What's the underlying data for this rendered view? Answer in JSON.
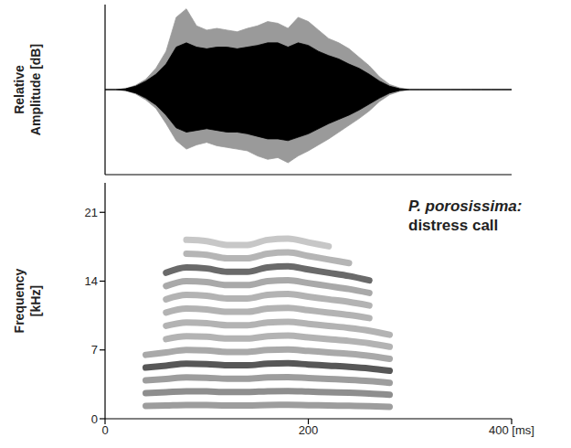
{
  "chart_data": [
    {
      "type": "area",
      "ylabel": "Relative Amplitude [dB]",
      "x": [
        0,
        10,
        20,
        30,
        40,
        50,
        60,
        70,
        80,
        90,
        100,
        110,
        120,
        130,
        140,
        150,
        160,
        170,
        180,
        190,
        200,
        210,
        220,
        230,
        240,
        250,
        260,
        270,
        280,
        290,
        300,
        310,
        320,
        330,
        340,
        350,
        360,
        370,
        380,
        390,
        400
      ],
      "series": [
        {
          "color": "#9a9a9a",
          "values": [
            0,
            0,
            0.01,
            0.05,
            0.12,
            0.25,
            0.45,
            0.85,
            0.95,
            0.75,
            0.7,
            0.72,
            0.7,
            0.68,
            0.72,
            0.75,
            0.8,
            0.78,
            0.72,
            0.85,
            0.8,
            0.7,
            0.6,
            0.55,
            0.48,
            0.38,
            0.28,
            0.15,
            0.06,
            0.02,
            0,
            0,
            0,
            0,
            0,
            0,
            0,
            0,
            0,
            0,
            0
          ]
        },
        {
          "color": "#9a9a9a",
          "values": [
            0,
            0,
            -0.01,
            -0.05,
            -0.12,
            -0.22,
            -0.4,
            -0.6,
            -0.7,
            -0.65,
            -0.62,
            -0.66,
            -0.68,
            -0.7,
            -0.72,
            -0.78,
            -0.82,
            -0.8,
            -0.86,
            -0.78,
            -0.72,
            -0.65,
            -0.58,
            -0.5,
            -0.42,
            -0.34,
            -0.25,
            -0.14,
            -0.06,
            -0.02,
            0,
            0,
            0,
            0,
            0,
            0,
            0,
            0,
            0,
            0,
            0
          ]
        },
        {
          "color": "#000000",
          "values": [
            0,
            0,
            0.01,
            0.04,
            0.1,
            0.18,
            0.3,
            0.5,
            0.55,
            0.5,
            0.48,
            0.5,
            0.5,
            0.48,
            0.5,
            0.52,
            0.55,
            0.55,
            0.5,
            0.55,
            0.52,
            0.45,
            0.4,
            0.36,
            0.3,
            0.25,
            0.18,
            0.1,
            0.04,
            0.01,
            0,
            0,
            0,
            0,
            0,
            0,
            0,
            0,
            0,
            0,
            0
          ]
        },
        {
          "color": "#000000",
          "values": [
            0,
            0,
            -0.01,
            -0.04,
            -0.1,
            -0.18,
            -0.3,
            -0.45,
            -0.5,
            -0.48,
            -0.46,
            -0.48,
            -0.5,
            -0.5,
            -0.52,
            -0.55,
            -0.58,
            -0.58,
            -0.6,
            -0.56,
            -0.52,
            -0.46,
            -0.4,
            -0.35,
            -0.3,
            -0.24,
            -0.17,
            -0.1,
            -0.04,
            -0.01,
            0,
            0,
            0,
            0,
            0,
            0,
            0,
            0,
            0,
            0,
            0
          ]
        }
      ],
      "xlim": [
        0,
        400
      ],
      "ylim": [
        -1,
        1
      ],
      "tick_labels": false
    },
    {
      "type": "line",
      "title": "P. porosissima: distress call",
      "ylabel": "Frequency [kHz]",
      "x": [
        40,
        60,
        80,
        100,
        120,
        140,
        160,
        180,
        200,
        220,
        240,
        260,
        280
      ],
      "series": [
        {
          "color": "#8c8c8c",
          "values": [
            1.3,
            1.35,
            1.4,
            1.39,
            1.36,
            1.36,
            1.4,
            1.41,
            1.38,
            1.35,
            1.32,
            1.28,
            1.22
          ]
        },
        {
          "color": "#7a7a7a",
          "values": [
            2.6,
            2.7,
            2.8,
            2.78,
            2.72,
            2.72,
            2.8,
            2.82,
            2.76,
            2.7,
            2.64,
            2.56,
            2.44
          ]
        },
        {
          "color": "#8c8c8c",
          "values": [
            3.9,
            4.05,
            4.2,
            4.17,
            4.08,
            4.08,
            4.2,
            4.23,
            4.14,
            4.05,
            3.96,
            3.84,
            3.66
          ]
        },
        {
          "color": "#3a3a3a",
          "values": [
            5.2,
            5.4,
            5.6,
            5.56,
            5.44,
            5.44,
            5.6,
            5.64,
            5.52,
            5.4,
            5.28,
            5.12,
            4.88
          ]
        },
        {
          "color": "#9a9a9a",
          "values": [
            6.5,
            6.75,
            7.0,
            6.95,
            6.8,
            6.8,
            7.0,
            7.05,
            6.9,
            6.75,
            6.6,
            6.4,
            6.1
          ]
        },
        {
          "color": "#a6a6a6",
          "values": [
            null,
            8.1,
            8.4,
            8.34,
            8.16,
            8.16,
            8.4,
            8.46,
            8.28,
            8.1,
            7.92,
            7.68,
            7.32
          ]
        },
        {
          "color": "#a6a6a6",
          "values": [
            null,
            9.45,
            9.8,
            9.73,
            9.52,
            9.52,
            9.8,
            9.87,
            9.66,
            9.45,
            9.24,
            8.96,
            8.54
          ]
        },
        {
          "color": "#a6a6a6",
          "values": [
            null,
            10.8,
            11.2,
            11.12,
            10.88,
            10.88,
            11.2,
            11.28,
            11.04,
            10.8,
            10.56,
            10.24,
            null
          ]
        },
        {
          "color": "#a6a6a6",
          "values": [
            null,
            12.15,
            12.6,
            12.51,
            12.24,
            12.24,
            12.6,
            12.69,
            12.42,
            12.15,
            11.88,
            11.52,
            null
          ]
        },
        {
          "color": "#9a9a9a",
          "values": [
            null,
            13.5,
            14.0,
            13.9,
            13.6,
            13.6,
            14.0,
            14.1,
            13.8,
            13.5,
            13.2,
            12.8,
            null
          ]
        },
        {
          "color": "#505050",
          "values": [
            null,
            14.85,
            15.4,
            15.29,
            14.96,
            14.96,
            15.4,
            15.51,
            15.18,
            14.85,
            14.52,
            14.08,
            null
          ]
        },
        {
          "color": "#a8a8a8",
          "values": [
            null,
            null,
            16.8,
            16.68,
            16.32,
            16.32,
            16.8,
            16.92,
            16.56,
            16.2,
            15.84,
            null,
            null
          ]
        },
        {
          "color": "#bdbdbd",
          "values": [
            null,
            null,
            18.2,
            18.07,
            17.68,
            17.68,
            18.2,
            18.33,
            17.94,
            17.55,
            null,
            null,
            null
          ]
        }
      ],
      "xlim": [
        0,
        400
      ],
      "xticks": [
        0,
        200,
        {
          "value": 400,
          "label": "400 [ms]"
        }
      ],
      "ylim": [
        0,
        24
      ],
      "yticks": [
        0,
        7,
        14,
        21
      ]
    }
  ]
}
